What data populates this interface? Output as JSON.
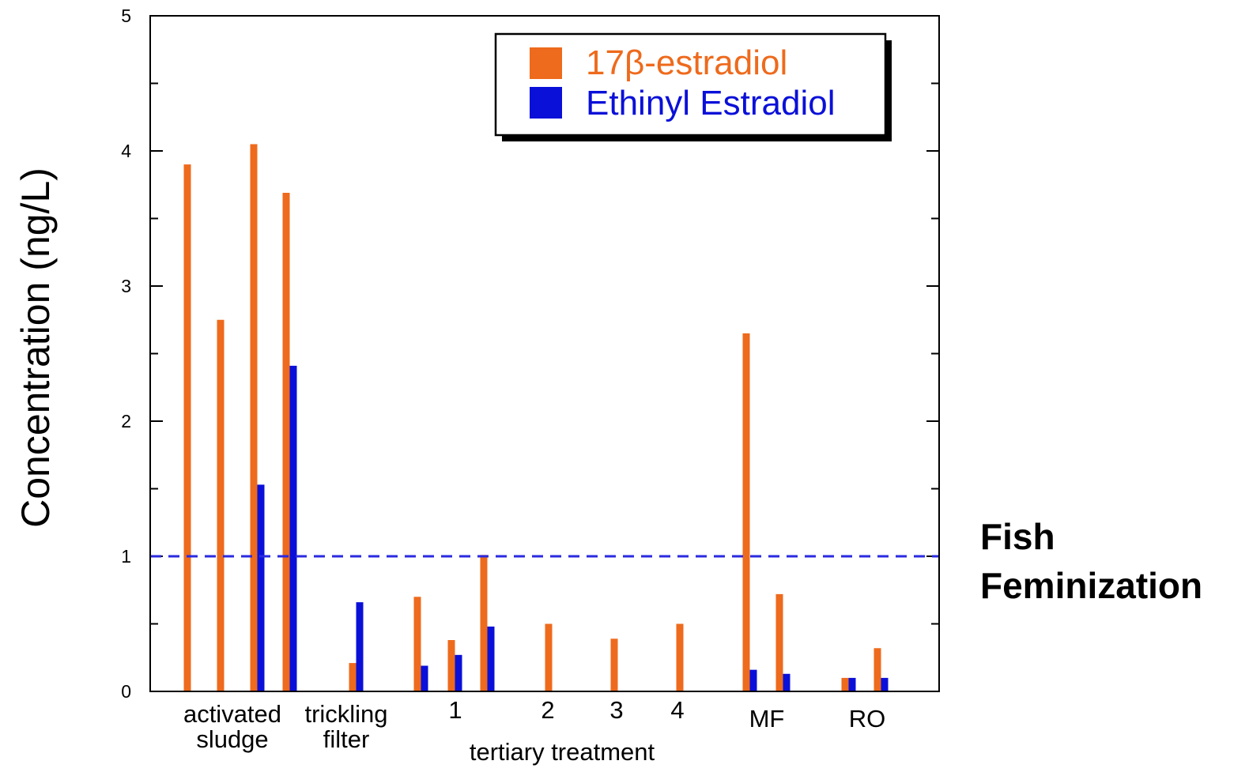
{
  "chart_data": {
    "type": "bar",
    "ylabel": "Concentration (ng/L)",
    "ylim": [
      0,
      5
    ],
    "yticks": [
      "0",
      "1",
      "2",
      "3",
      "4",
      "5"
    ],
    "grid": false,
    "legend_position": "top-right",
    "series": [
      {
        "name": "17β-estradiol",
        "color": "#ee6a1c"
      },
      {
        "name": "Ethinyl Estradiol",
        "color": "#0a10d8"
      }
    ],
    "bars": [
      {
        "group": "activated sludge",
        "e2": 3.9,
        "ee2": null
      },
      {
        "group": "activated sludge",
        "e2": 2.75,
        "ee2": null
      },
      {
        "group": "activated sludge",
        "e2": 4.05,
        "ee2": 1.53
      },
      {
        "group": "activated sludge",
        "e2": 3.69,
        "ee2": 2.41
      },
      {
        "group": "trickling filter",
        "e2": 0.21,
        "ee2": 0.66
      },
      {
        "group": "tertiary treatment 1",
        "e2": 0.7,
        "ee2": 0.19
      },
      {
        "group": "tertiary treatment 1",
        "e2": 0.38,
        "ee2": 0.27
      },
      {
        "group": "tertiary treatment 1",
        "e2": 1.01,
        "ee2": 0.48
      },
      {
        "group": "tertiary treatment 2",
        "e2": 0.5,
        "ee2": null
      },
      {
        "group": "tertiary treatment 3",
        "e2": 0.39,
        "ee2": null
      },
      {
        "group": "tertiary treatment 4",
        "e2": 0.5,
        "ee2": null
      },
      {
        "group": "MF",
        "e2": 2.65,
        "ee2": 0.16
      },
      {
        "group": "MF",
        "e2": 0.72,
        "ee2": 0.13
      },
      {
        "group": "RO",
        "e2": 0.1,
        "ee2": 0.1
      },
      {
        "group": "RO",
        "e2": 0.32,
        "ee2": 0.1
      }
    ],
    "category_labels": [
      {
        "lines": [
          "activated",
          "sludge"
        ]
      },
      {
        "lines": [
          "trickling",
          "filter"
        ]
      },
      {
        "lines": [
          "1"
        ]
      },
      {
        "lines": [
          "2"
        ]
      },
      {
        "lines": [
          "3"
        ]
      },
      {
        "lines": [
          "4"
        ]
      },
      {
        "lines": [
          "MF"
        ]
      },
      {
        "lines": [
          "RO"
        ]
      }
    ],
    "group_label": "tertiary treatment",
    "threshold": {
      "value": 1,
      "color": "#2a2ae0",
      "label_lines": [
        "Fish",
        "Feminization"
      ]
    }
  }
}
